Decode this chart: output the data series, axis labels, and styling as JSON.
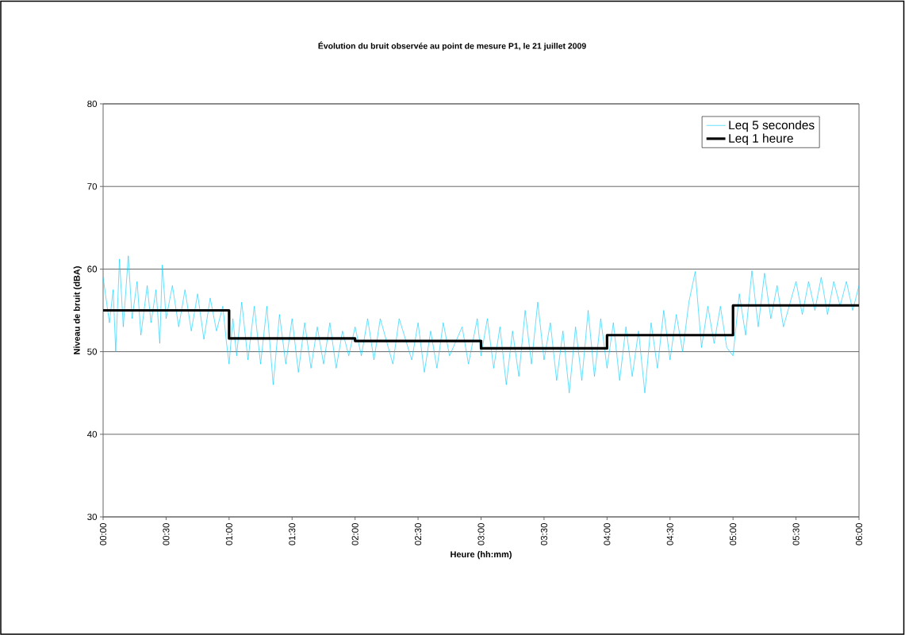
{
  "chart_data": {
    "type": "line",
    "title": "Évolution du bruit observée au point de mesure P1, le 21 juillet 2009",
    "xlabel": "Heure (hh:mm)",
    "ylabel": "Niveau de bruit (dBA)",
    "xlim": [
      0,
      6
    ],
    "ylim": [
      30,
      80
    ],
    "xticks": [
      {
        "value": 0,
        "label": "00:00"
      },
      {
        "value": 0.5,
        "label": "00:30"
      },
      {
        "value": 1,
        "label": "01:00"
      },
      {
        "value": 1.5,
        "label": "01:30"
      },
      {
        "value": 2,
        "label": "02:00"
      },
      {
        "value": 2.5,
        "label": "02:30"
      },
      {
        "value": 3,
        "label": "03:00"
      },
      {
        "value": 3.5,
        "label": "03:30"
      },
      {
        "value": 4,
        "label": "04:00"
      },
      {
        "value": 4.5,
        "label": "04:30"
      },
      {
        "value": 5,
        "label": "05:00"
      },
      {
        "value": 5.5,
        "label": "05:30"
      },
      {
        "value": 6,
        "label": "06:00"
      }
    ],
    "yticks": [
      30,
      40,
      50,
      60,
      70,
      80
    ],
    "grid": "y",
    "legend": "top right",
    "marker": "none",
    "series": [
      {
        "name": "Leq 5 secondes",
        "color": "#00ccff",
        "x": [
          0.0,
          0.05,
          0.08,
          0.1,
          0.13,
          0.16,
          0.2,
          0.23,
          0.27,
          0.3,
          0.35,
          0.38,
          0.42,
          0.45,
          0.47,
          0.5,
          0.55,
          0.6,
          0.65,
          0.7,
          0.75,
          0.8,
          0.85,
          0.9,
          0.95,
          0.98,
          1.0,
          1.03,
          1.06,
          1.1,
          1.15,
          1.2,
          1.25,
          1.3,
          1.35,
          1.4,
          1.45,
          1.5,
          1.55,
          1.6,
          1.65,
          1.7,
          1.75,
          1.8,
          1.85,
          1.9,
          1.95,
          2.0,
          2.05,
          2.1,
          2.15,
          2.2,
          2.3,
          2.35,
          2.45,
          2.5,
          2.55,
          2.6,
          2.65,
          2.7,
          2.75,
          2.85,
          2.9,
          2.97,
          3.0,
          3.05,
          3.1,
          3.15,
          3.2,
          3.25,
          3.3,
          3.35,
          3.4,
          3.45,
          3.5,
          3.55,
          3.6,
          3.65,
          3.7,
          3.75,
          3.8,
          3.85,
          3.9,
          3.95,
          4.0,
          4.05,
          4.1,
          4.15,
          4.2,
          4.25,
          4.3,
          4.35,
          4.4,
          4.45,
          4.5,
          4.55,
          4.6,
          4.65,
          4.7,
          4.75,
          4.8,
          4.85,
          4.9,
          4.95,
          5.0,
          5.05,
          5.1,
          5.15,
          5.2,
          5.25,
          5.3,
          5.35,
          5.4,
          5.5,
          5.55,
          5.6,
          5.65,
          5.7,
          5.75,
          5.8,
          5.85,
          5.9,
          5.95,
          6.0
        ],
        "values": [
          59.0,
          53.5,
          57.5,
          50.0,
          61.2,
          53.0,
          61.6,
          54.0,
          58.5,
          52.0,
          58.0,
          53.5,
          57.5,
          51.0,
          60.5,
          54.0,
          58.0,
          53.0,
          57.5,
          52.5,
          57.0,
          51.5,
          56.5,
          52.5,
          55.5,
          51.0,
          48.5,
          54.0,
          49.5,
          56.0,
          49.0,
          55.5,
          48.5,
          55.5,
          46.0,
          54.5,
          48.5,
          54.0,
          47.5,
          53.5,
          48.0,
          53.0,
          48.5,
          53.5,
          48.0,
          52.5,
          49.5,
          53.0,
          49.5,
          54.0,
          49.0,
          54.0,
          48.5,
          54.0,
          49.0,
          53.5,
          47.5,
          52.5,
          48.0,
          53.5,
          49.5,
          53.0,
          48.5,
          54.0,
          49.5,
          54.0,
          48.0,
          53.0,
          46.0,
          52.5,
          47.0,
          55.0,
          48.5,
          56.0,
          49.0,
          53.5,
          46.5,
          52.5,
          45.0,
          53.0,
          46.5,
          55.0,
          47.0,
          54.0,
          48.0,
          53.5,
          46.5,
          53.0,
          47.0,
          52.5,
          45.0,
          53.5,
          48.0,
          55.0,
          49.0,
          54.5,
          50.0,
          56.0,
          59.7,
          50.5,
          55.5,
          51.0,
          55.5,
          50.5,
          49.5,
          57.0,
          52.0,
          59.8,
          53.0,
          59.5,
          54.0,
          58.0,
          53.0,
          58.5,
          54.5,
          58.5,
          55.0,
          59.0,
          54.5,
          58.5,
          55.5,
          58.5,
          55.0,
          58.0
        ]
      },
      {
        "name": "Leq 1 heure",
        "type": "step",
        "color": "#000000",
        "x": [
          0,
          1,
          2,
          3,
          4,
          5,
          6
        ],
        "values": [
          55.0,
          51.6,
          51.3,
          50.4,
          52.0,
          55.6,
          55.6
        ]
      }
    ]
  }
}
